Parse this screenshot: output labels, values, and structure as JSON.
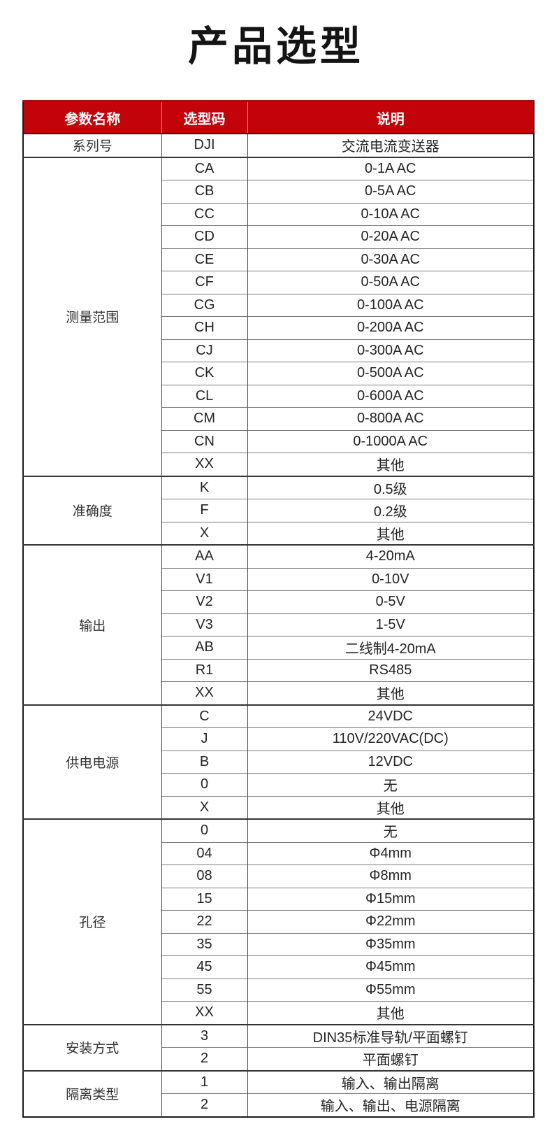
{
  "title": "产品选型",
  "colors": {
    "header_bg": "#c20309",
    "header_bg_top_edge": "#9e1013",
    "header_text": "#ffffff",
    "outer_border": "#1c1c1c",
    "row_line": "#7b7b7b",
    "title_color": "#141414"
  },
  "table": {
    "headers": [
      "参数名称",
      "选型码",
      "说明"
    ],
    "sections": [
      {
        "name": "系列号",
        "rows": [
          [
            "DJI",
            "交流电流变送器"
          ]
        ]
      },
      {
        "name": "测量范围",
        "rows": [
          [
            "CA",
            "0-1A AC"
          ],
          [
            "CB",
            "0-5A AC"
          ],
          [
            "CC",
            "0-10A AC"
          ],
          [
            "CD",
            "0-20A AC"
          ],
          [
            "CE",
            "0-30A AC"
          ],
          [
            "CF",
            "0-50A AC"
          ],
          [
            "CG",
            "0-100A AC"
          ],
          [
            "CH",
            "0-200A AC"
          ],
          [
            "CJ",
            "0-300A AC"
          ],
          [
            "CK",
            "0-500A AC"
          ],
          [
            "CL",
            "0-600A AC"
          ],
          [
            "CM",
            "0-800A AC"
          ],
          [
            "CN",
            "0-1000A AC"
          ],
          [
            "XX",
            "其他"
          ]
        ]
      },
      {
        "name": "准确度",
        "rows": [
          [
            "K",
            "0.5级"
          ],
          [
            "F",
            "0.2级"
          ],
          [
            "X",
            "其他"
          ]
        ]
      },
      {
        "name": "输出",
        "rows": [
          [
            "AA",
            "4-20mA"
          ],
          [
            "V1",
            "0-10V"
          ],
          [
            "V2",
            "0-5V"
          ],
          [
            "V3",
            "1-5V"
          ],
          [
            "AB",
            "二线制4-20mA"
          ],
          [
            "R1",
            "RS485"
          ],
          [
            "XX",
            "其他"
          ]
        ]
      },
      {
        "name": "供电电源",
        "rows": [
          [
            "C",
            "24VDC"
          ],
          [
            "J",
            "110V/220VAC(DC)"
          ],
          [
            "B",
            "12VDC"
          ],
          [
            "0",
            "无"
          ],
          [
            "X",
            "其他"
          ]
        ]
      },
      {
        "name": "孔径",
        "rows": [
          [
            "0",
            "无"
          ],
          [
            "04",
            "Φ4mm"
          ],
          [
            "08",
            "Φ8mm"
          ],
          [
            "15",
            "Φ15mm"
          ],
          [
            "22",
            "Φ22mm"
          ],
          [
            "35",
            "Φ35mm"
          ],
          [
            "45",
            "Φ45mm"
          ],
          [
            "55",
            "Φ55mm"
          ],
          [
            "XX",
            "其他"
          ]
        ]
      },
      {
        "name": "安装方式",
        "rows": [
          [
            "3",
            "DIN35标准导轨/平面螺钉"
          ],
          [
            "2",
            "平面螺钉"
          ]
        ]
      },
      {
        "name": "隔离类型",
        "rows": [
          [
            "1",
            "输入、输出隔离"
          ],
          [
            "2",
            "输入、输出、电源隔离"
          ]
        ]
      }
    ]
  }
}
